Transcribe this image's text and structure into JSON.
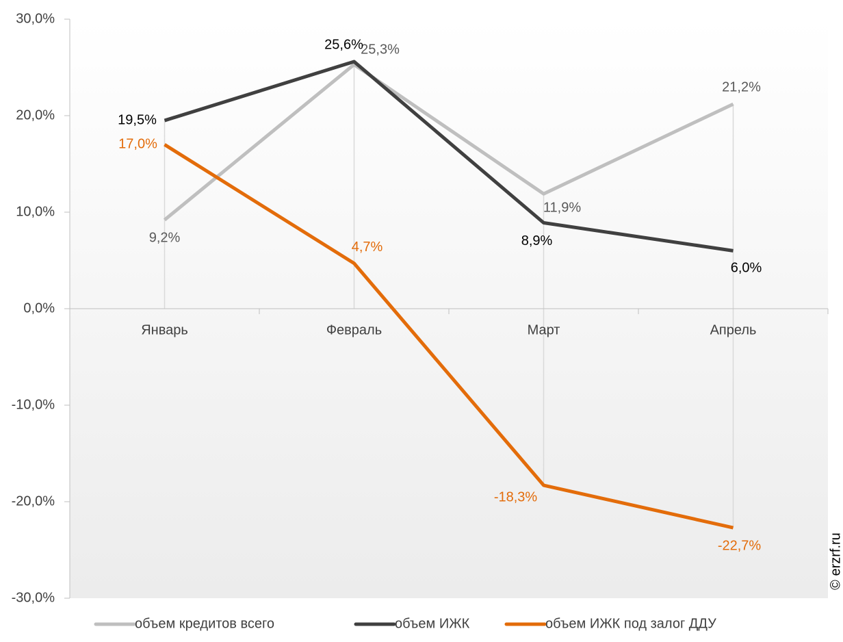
{
  "chart_data": {
    "type": "line",
    "categories": [
      "Январь",
      "Февраль",
      "Март",
      "Апрель"
    ],
    "series": [
      {
        "name": "объем кредитов всего",
        "color": "#bfbfbf",
        "values": [
          9.2,
          25.3,
          11.9,
          21.2
        ],
        "value_labels": [
          "9,2%",
          "25,3%",
          "11,9%",
          "21,2%"
        ]
      },
      {
        "name": "объем ИЖК",
        "color": "#404040",
        "values": [
          19.5,
          25.6,
          8.9,
          6.0
        ],
        "value_labels": [
          "19,5%",
          "25,6%",
          "8,9%",
          "6,0%"
        ]
      },
      {
        "name": "объем ИЖК под залог ДДУ",
        "color": "#e36c0a",
        "values": [
          17.0,
          4.7,
          -18.3,
          -22.7
        ],
        "value_labels": [
          "17,0%",
          "4,7%",
          "-18,3%",
          "-22,7%"
        ]
      }
    ],
    "ylim": [
      -30,
      30
    ],
    "yticks": [
      {
        "value": -30,
        "label": "-30,0%"
      },
      {
        "value": -20,
        "label": "-20,0%"
      },
      {
        "value": -10,
        "label": "-10,0%"
      },
      {
        "value": 0,
        "label": "0,0%"
      },
      {
        "value": 10,
        "label": "10,0%"
      },
      {
        "value": 20,
        "label": "20,0%"
      },
      {
        "value": 30,
        "label": "30,0%"
      }
    ],
    "legend": "bottom",
    "watermark": "© erzrf.ru"
  }
}
